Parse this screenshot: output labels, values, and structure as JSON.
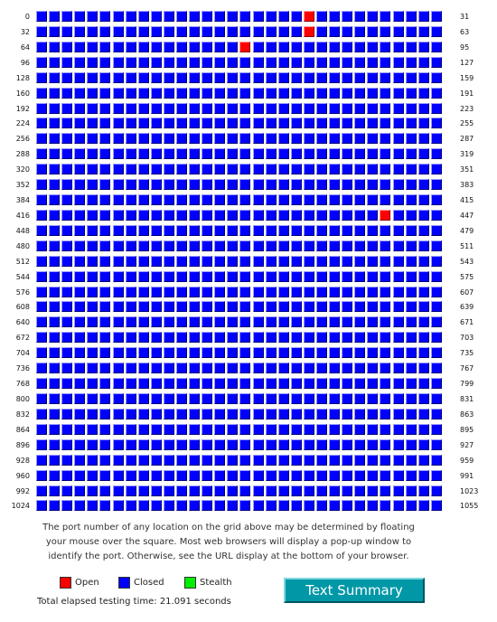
{
  "grid": {
    "columns": 32,
    "rows": [
      {
        "start": "0",
        "end": "31"
      },
      {
        "start": "32",
        "end": "63"
      },
      {
        "start": "64",
        "end": "95"
      },
      {
        "start": "96",
        "end": "127"
      },
      {
        "start": "128",
        "end": "159"
      },
      {
        "start": "160",
        "end": "191"
      },
      {
        "start": "192",
        "end": "223"
      },
      {
        "start": "224",
        "end": "255"
      },
      {
        "start": "256",
        "end": "287"
      },
      {
        "start": "288",
        "end": "319"
      },
      {
        "start": "320",
        "end": "351"
      },
      {
        "start": "352",
        "end": "383"
      },
      {
        "start": "384",
        "end": "415"
      },
      {
        "start": "416",
        "end": "447"
      },
      {
        "start": "448",
        "end": "479"
      },
      {
        "start": "480",
        "end": "511"
      },
      {
        "start": "512",
        "end": "543"
      },
      {
        "start": "544",
        "end": "575"
      },
      {
        "start": "576",
        "end": "607"
      },
      {
        "start": "608",
        "end": "639"
      },
      {
        "start": "640",
        "end": "671"
      },
      {
        "start": "672",
        "end": "703"
      },
      {
        "start": "704",
        "end": "735"
      },
      {
        "start": "736",
        "end": "767"
      },
      {
        "start": "768",
        "end": "799"
      },
      {
        "start": "800",
        "end": "831"
      },
      {
        "start": "832",
        "end": "863"
      },
      {
        "start": "864",
        "end": "895"
      },
      {
        "start": "896",
        "end": "927"
      },
      {
        "start": "928",
        "end": "959"
      },
      {
        "start": "960",
        "end": "991"
      },
      {
        "start": "992",
        "end": "1023"
      },
      {
        "start": "1024",
        "end": "1055"
      }
    ],
    "open_ports": [
      21,
      53,
      80,
      443
    ]
  },
  "description": {
    "line1": "The port number of any location on the grid above may be determined by floating",
    "line2": "your mouse over the square. Most web browsers will display a pop-up window to",
    "line3": "identify the port. Otherwise, see the URL display at the bottom of your browser."
  },
  "legend": {
    "open_label": "Open",
    "closed_label": "Closed",
    "stealth_label": "Stealth",
    "open_color": "#ff0000",
    "closed_color": "#0000ff",
    "stealth_color": "#00ee00"
  },
  "elapsed_text": "Total elapsed testing time: 21.091 seconds",
  "summary_button_label": "Text Summary"
}
